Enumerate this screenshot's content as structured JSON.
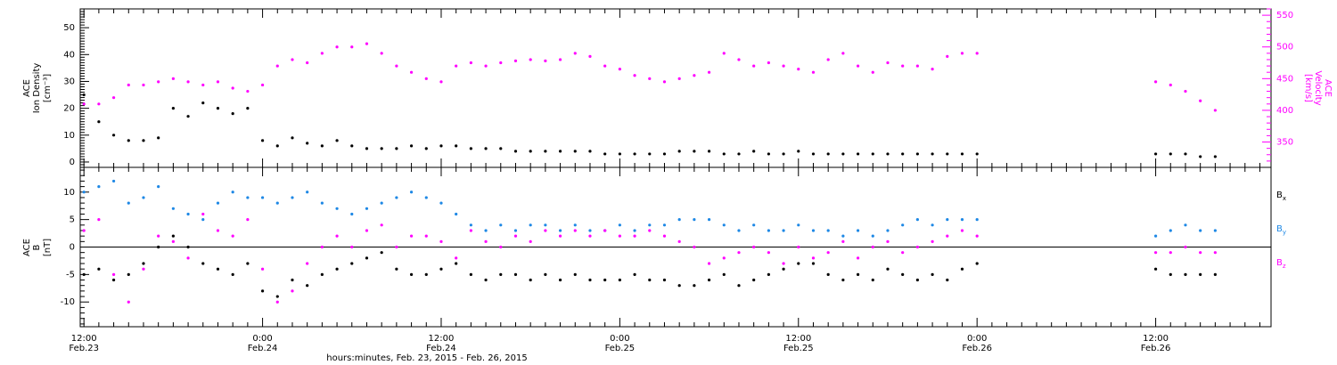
{
  "colors": {
    "black": "#000000",
    "magenta": "#ff00ff",
    "blue": "#1e88e5"
  },
  "chart_data": [
    {
      "type": "scatter",
      "panel": "top",
      "ylabel_left": [
        "ACE",
        "Ion Density",
        "[cm⁻³]"
      ],
      "ylabel_right": [
        "ACE",
        "Velocity",
        "[km/s]"
      ],
      "ylim_left": [
        -2,
        57
      ],
      "ylim_right": [
        310,
        560
      ],
      "yticks_left": [
        0,
        10,
        20,
        30,
        40,
        50
      ],
      "yticks_right": [
        350,
        400,
        450,
        500,
        550
      ],
      "xlim_hours": [
        11.75,
        91.75
      ],
      "series": [
        {
          "name": "Ion Density",
          "color": "#000000",
          "axis": "left",
          "x": [
            12,
            13,
            14,
            15,
            16,
            17,
            18,
            19,
            20,
            21,
            22,
            23,
            24,
            25,
            26,
            27,
            28,
            29,
            30,
            31,
            32,
            33,
            34,
            35,
            36,
            37,
            38,
            39,
            40,
            41,
            42,
            43,
            44,
            45,
            46,
            47,
            48,
            49,
            50,
            51,
            52,
            53,
            54,
            55,
            56,
            57,
            58,
            59,
            60,
            61,
            62,
            63,
            64,
            65,
            66,
            67,
            68,
            69,
            70,
            71,
            72,
            84,
            85,
            86,
            87,
            88
          ],
          "y": [
            25,
            15,
            10,
            8,
            8,
            9,
            20,
            17,
            22,
            20,
            18,
            20,
            8,
            6,
            9,
            7,
            6,
            8,
            6,
            5,
            5,
            5,
            6,
            5,
            6,
            6,
            5,
            5,
            5,
            4,
            4,
            4,
            4,
            4,
            4,
            3,
            3,
            3,
            3,
            3,
            4,
            4,
            4,
            3,
            3,
            4,
            3,
            3,
            4,
            3,
            3,
            3,
            3,
            3,
            3,
            3,
            3,
            3,
            3,
            3,
            3,
            3,
            3,
            3,
            2,
            2
          ]
        },
        {
          "name": "Velocity",
          "color": "#ff00ff",
          "axis": "right",
          "x": [
            12,
            13,
            14,
            15,
            16,
            17,
            18,
            19,
            20,
            21,
            22,
            23,
            24,
            25,
            26,
            27,
            28,
            29,
            30,
            31,
            32,
            33,
            34,
            35,
            36,
            37,
            38,
            39,
            40,
            41,
            42,
            43,
            44,
            45,
            46,
            47,
            48,
            49,
            50,
            51,
            52,
            53,
            54,
            55,
            56,
            57,
            58,
            59,
            60,
            61,
            62,
            63,
            64,
            65,
            66,
            67,
            68,
            69,
            70,
            71,
            72,
            84,
            85,
            86,
            87,
            88
          ],
          "y": [
            410,
            410,
            420,
            440,
            440,
            445,
            450,
            445,
            440,
            445,
            435,
            430,
            440,
            470,
            480,
            475,
            490,
            500,
            500,
            505,
            490,
            470,
            460,
            450,
            445,
            470,
            475,
            470,
            475,
            478,
            480,
            478,
            480,
            490,
            485,
            470,
            465,
            455,
            450,
            445,
            450,
            455,
            460,
            490,
            480,
            470,
            475,
            470,
            465,
            460,
            480,
            490,
            470,
            460,
            475,
            470,
            470,
            465,
            485,
            490,
            490,
            445,
            440,
            430,
            415,
            400
          ]
        }
      ]
    },
    {
      "type": "scatter",
      "panel": "bottom",
      "ylabel_left": [
        "ACE",
        "B",
        "[nT]"
      ],
      "ylim": [
        -14.5,
        14.5
      ],
      "yticks": [
        -10,
        -5,
        0,
        5,
        10
      ],
      "xlim_hours": [
        11.75,
        91.75
      ],
      "series": [
        {
          "name": "Bx",
          "color": "#000000",
          "x": [
            12,
            13,
            14,
            15,
            16,
            17,
            18,
            19,
            20,
            21,
            22,
            23,
            24,
            25,
            26,
            27,
            28,
            29,
            30,
            31,
            32,
            33,
            34,
            35,
            36,
            37,
            38,
            39,
            40,
            41,
            42,
            43,
            44,
            45,
            46,
            47,
            48,
            49,
            50,
            51,
            52,
            53,
            54,
            55,
            56,
            57,
            58,
            59,
            60,
            61,
            62,
            63,
            64,
            65,
            66,
            67,
            68,
            69,
            70,
            71,
            72,
            84,
            85,
            86,
            87,
            88
          ],
          "y": [
            -5,
            -4,
            -6,
            -5,
            -3,
            0,
            2,
            0,
            -3,
            -4,
            -5,
            -3,
            -8,
            -9,
            -6,
            -7,
            -5,
            -4,
            -3,
            -2,
            -1,
            -4,
            -5,
            -5,
            -4,
            -3,
            -5,
            -6,
            -5,
            -5,
            -6,
            -5,
            -6,
            -5,
            -6,
            -6,
            -6,
            -5,
            -6,
            -6,
            -7,
            -7,
            -6,
            -5,
            -7,
            -6,
            -5,
            -4,
            -3,
            -3,
            -5,
            -6,
            -5,
            -6,
            -4,
            -5,
            -6,
            -5,
            -6,
            -4,
            -3,
            -4,
            -5,
            -5,
            -5,
            -5
          ]
        },
        {
          "name": "By",
          "color": "#1e88e5",
          "x": [
            12,
            13,
            14,
            15,
            16,
            17,
            18,
            19,
            20,
            21,
            22,
            23,
            24,
            25,
            26,
            27,
            28,
            29,
            30,
            31,
            32,
            33,
            34,
            35,
            36,
            37,
            38,
            39,
            40,
            41,
            42,
            43,
            44,
            45,
            46,
            47,
            48,
            49,
            50,
            51,
            52,
            53,
            54,
            55,
            56,
            57,
            58,
            59,
            60,
            61,
            62,
            63,
            64,
            65,
            66,
            67,
            68,
            69,
            70,
            71,
            72,
            84,
            85,
            86,
            87,
            88
          ],
          "y": [
            10,
            11,
            12,
            8,
            9,
            11,
            7,
            6,
            5,
            8,
            10,
            9,
            9,
            8,
            9,
            10,
            8,
            7,
            6,
            7,
            8,
            9,
            10,
            9,
            8,
            6,
            4,
            3,
            4,
            3,
            4,
            4,
            3,
            4,
            3,
            3,
            4,
            3,
            4,
            4,
            5,
            5,
            5,
            4,
            3,
            4,
            3,
            3,
            4,
            3,
            3,
            2,
            3,
            2,
            3,
            4,
            5,
            4,
            5,
            5,
            5,
            2,
            3,
            4,
            3,
            3
          ]
        },
        {
          "name": "Bz",
          "color": "#ff00ff",
          "x": [
            12,
            13,
            14,
            15,
            16,
            17,
            18,
            19,
            20,
            21,
            22,
            23,
            24,
            25,
            26,
            27,
            28,
            29,
            30,
            31,
            32,
            33,
            34,
            35,
            36,
            37,
            38,
            39,
            40,
            41,
            42,
            43,
            44,
            45,
            46,
            47,
            48,
            49,
            50,
            51,
            52,
            53,
            54,
            55,
            56,
            57,
            58,
            59,
            60,
            61,
            62,
            63,
            64,
            65,
            66,
            67,
            68,
            69,
            70,
            71,
            72,
            84,
            85,
            86,
            87,
            88
          ],
          "y": [
            3,
            5,
            -5,
            -10,
            -4,
            2,
            1,
            -2,
            6,
            3,
            2,
            5,
            -4,
            -10,
            -8,
            -3,
            0,
            2,
            0,
            3,
            4,
            0,
            2,
            2,
            1,
            -2,
            3,
            1,
            0,
            2,
            1,
            3,
            2,
            3,
            2,
            3,
            2,
            2,
            3,
            2,
            1,
            0,
            -3,
            -2,
            -1,
            0,
            -1,
            -3,
            0,
            -2,
            -1,
            1,
            -2,
            0,
            1,
            -1,
            0,
            1,
            2,
            3,
            2,
            -1,
            -1,
            0,
            -1,
            -1
          ]
        }
      ]
    }
  ],
  "x_axis": {
    "ticks": [
      {
        "hour": 12,
        "time": "12:00",
        "date": "Feb.23"
      },
      {
        "hour": 24,
        "time": "0:00",
        "date": "Feb.24"
      },
      {
        "hour": 36,
        "time": "12:00",
        "date": "Feb.24"
      },
      {
        "hour": 48,
        "time": "0:00",
        "date": "Feb.25"
      },
      {
        "hour": 60,
        "time": "12:00",
        "date": "Feb.25"
      },
      {
        "hour": 72,
        "time": "0:00",
        "date": "Feb.26"
      },
      {
        "hour": 84,
        "time": "12:00",
        "date": "Feb.26"
      }
    ],
    "title": "hours:minutes, Feb. 23, 2015 - Feb. 26, 2015"
  },
  "legend_b": [
    {
      "label": "Bx",
      "main": "B",
      "sub": "x",
      "color": "#000000"
    },
    {
      "label": "By",
      "main": "B",
      "sub": "y",
      "color": "#1e88e5"
    },
    {
      "label": "Bz",
      "main": "B",
      "sub": "z",
      "color": "#ff00ff"
    }
  ]
}
